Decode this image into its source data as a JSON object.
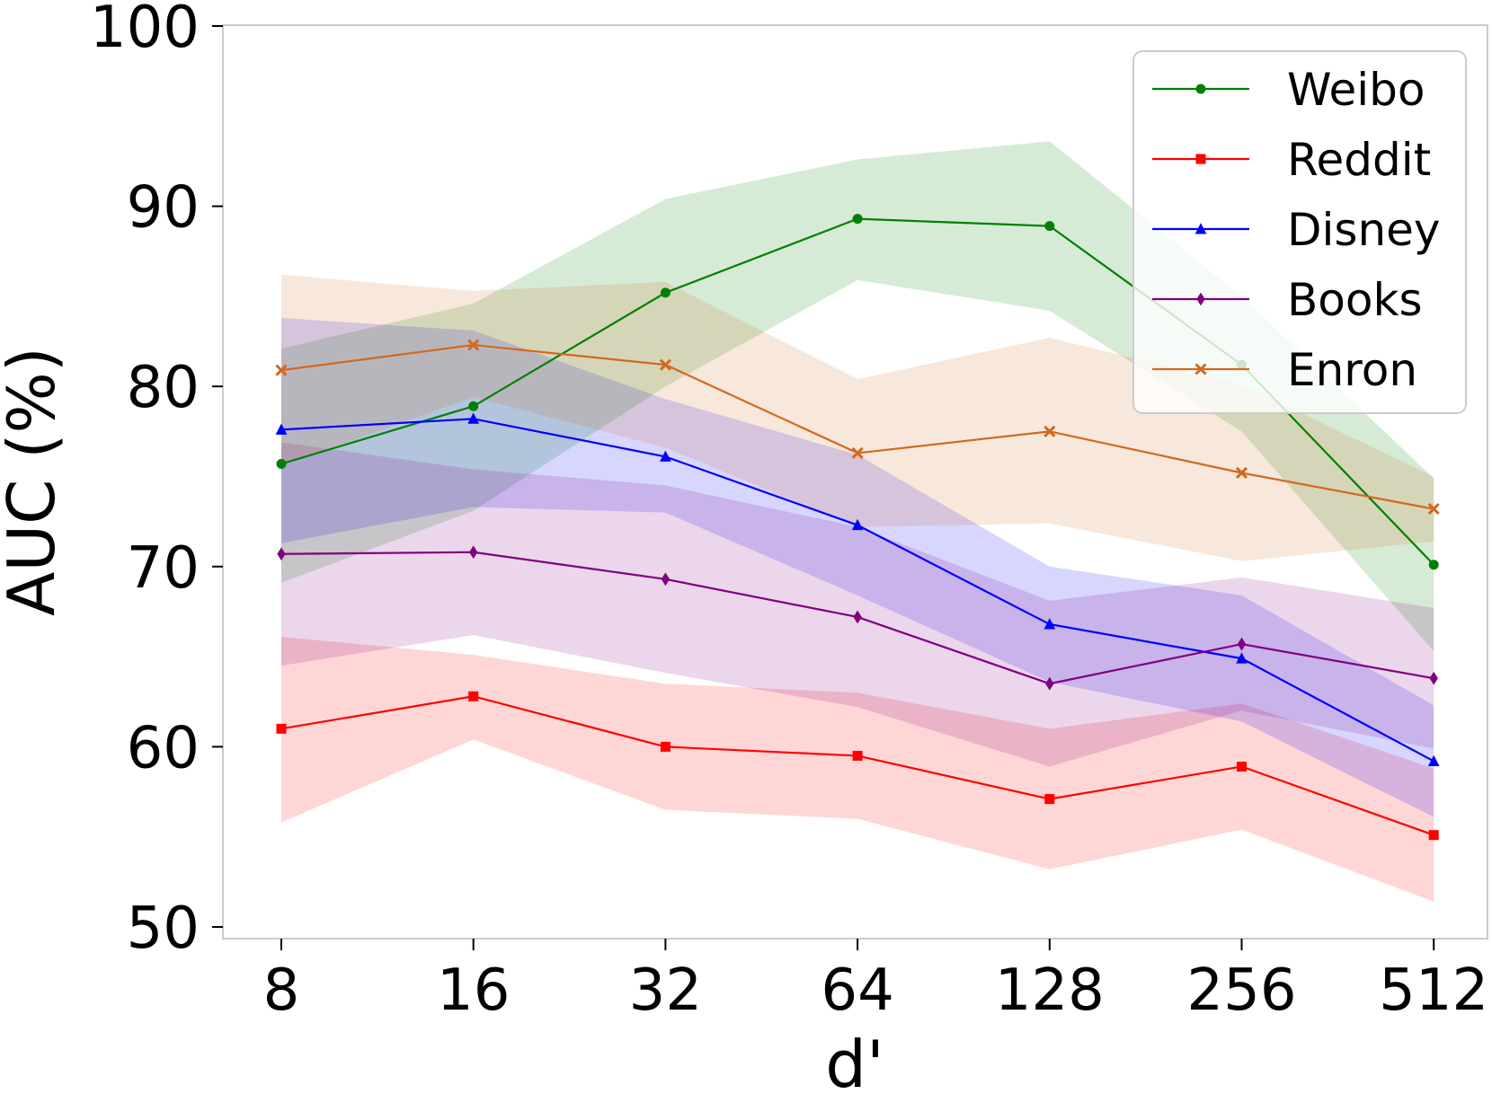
{
  "chart_data": {
    "type": "line",
    "title": "",
    "xlabel": "d'",
    "ylabel": "AUC (%)",
    "categories": [
      "8",
      "16",
      "32",
      "64",
      "128",
      "256",
      "512"
    ],
    "ylim": [
      50,
      100
    ],
    "yticks": [
      50,
      60,
      70,
      80,
      90,
      100
    ],
    "grid": false,
    "legend_position": "top-right",
    "series": [
      {
        "name": "Weibo",
        "color": "#008000",
        "marker": "circle",
        "values": [
          75.7,
          78.9,
          85.2,
          89.3,
          88.9,
          81.2,
          70.1
        ],
        "upper": [
          82.1,
          84.6,
          90.4,
          92.6,
          93.6,
          85.0,
          74.9
        ],
        "lower": [
          69.1,
          73.1,
          80.0,
          85.9,
          84.2,
          77.5,
          65.3
        ]
      },
      {
        "name": "Reddit",
        "color": "#ff0000",
        "marker": "square",
        "values": [
          61.0,
          62.8,
          60.0,
          59.5,
          57.1,
          58.9,
          55.1
        ],
        "upper": [
          66.1,
          65.1,
          63.5,
          63.0,
          61.0,
          62.4,
          58.8
        ],
        "lower": [
          55.8,
          60.4,
          56.5,
          56.0,
          53.2,
          55.4,
          51.4
        ]
      },
      {
        "name": "Disney",
        "color": "#0000ff",
        "marker": "triangle",
        "values": [
          77.6,
          78.2,
          76.1,
          72.3,
          66.8,
          64.9,
          59.2
        ],
        "upper": [
          83.8,
          83.1,
          79.3,
          76.2,
          70.0,
          68.4,
          62.3
        ],
        "lower": [
          71.3,
          73.3,
          73.0,
          68.4,
          63.6,
          61.4,
          56.1
        ]
      },
      {
        "name": "Books",
        "color": "#800080",
        "marker": "diamond",
        "values": [
          70.7,
          70.8,
          69.3,
          67.2,
          63.5,
          65.7,
          63.8
        ],
        "upper": [
          76.9,
          75.4,
          74.5,
          72.2,
          68.1,
          69.4,
          67.7
        ],
        "lower": [
          64.5,
          66.2,
          64.1,
          62.2,
          58.9,
          62.0,
          59.9
        ]
      },
      {
        "name": "Enron",
        "color": "#d2691e",
        "marker": "x",
        "values": [
          80.9,
          82.3,
          81.2,
          76.3,
          77.5,
          75.2,
          73.2
        ],
        "upper": [
          86.2,
          85.3,
          85.8,
          80.4,
          82.7,
          80.1,
          75.0
        ],
        "lower": [
          75.6,
          79.4,
          76.6,
          72.2,
          72.4,
          70.3,
          71.4
        ]
      }
    ]
  }
}
